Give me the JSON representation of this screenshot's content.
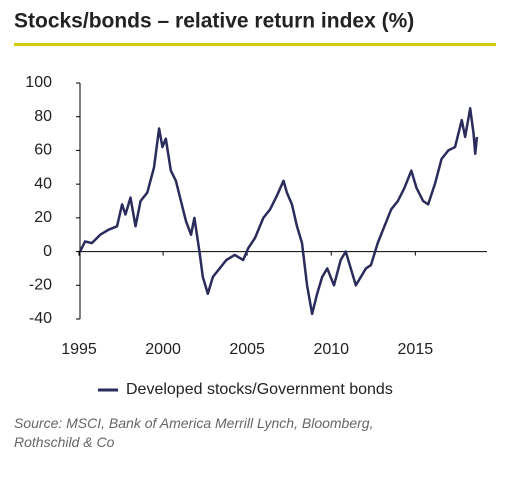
{
  "chart_data": {
    "type": "line",
    "title": "Stocks/bonds – relative return index (%)",
    "x": [
      1995.3,
      1995.6,
      1996,
      1996.5,
      1997,
      1997.5,
      1997.8,
      1998,
      1998.3,
      1998.6,
      1998.9,
      1999.3,
      1999.7,
      2000,
      2000.2,
      2000.4,
      2000.7,
      2001,
      2001.3,
      2001.6,
      2001.9,
      2002.1,
      2002.4,
      2002.6,
      2002.9,
      2003.2,
      2003.6,
      2004,
      2004.5,
      2005,
      2005.3,
      2005.7,
      2006.2,
      2006.6,
      2007,
      2007.4,
      2007.6,
      2007.9,
      2008.2,
      2008.5,
      2008.8,
      2009.1,
      2009.4,
      2009.7,
      2010,
      2010.4,
      2010.8,
      2011.1,
      2011.4,
      2011.7,
      2012,
      2012.3,
      2012.6,
      2013,
      2013.4,
      2013.8,
      2014.2,
      2014.6,
      2015,
      2015.3,
      2015.7,
      2016,
      2016.4,
      2016.8,
      2017.2,
      2017.6,
      2018,
      2018.2,
      2018.5,
      2018.7,
      2018.8,
      2018.9
    ],
    "series": [
      {
        "name": "Developed stocks/Government bonds",
        "color": "#2b2b5c",
        "values": [
          0,
          6,
          5,
          10,
          13,
          15,
          28,
          22,
          32,
          15,
          30,
          35,
          50,
          73,
          62,
          67,
          48,
          42,
          30,
          18,
          10,
          20,
          0,
          -15,
          -25,
          -15,
          -10,
          -5,
          -2,
          -5,
          2,
          8,
          20,
          25,
          33,
          42,
          35,
          28,
          15,
          5,
          -20,
          -37,
          -25,
          -15,
          -10,
          -20,
          -5,
          0,
          -10,
          -20,
          -15,
          -10,
          -8,
          5,
          15,
          25,
          30,
          38,
          48,
          38,
          30,
          28,
          40,
          55,
          60,
          62,
          78,
          68,
          85,
          70,
          58,
          68
        ]
      }
    ],
    "xlim": [
      1995,
      2019.5
    ],
    "xticks": [
      1995,
      2000,
      2005,
      2010,
      2015
    ],
    "ylim": [
      -40,
      100
    ],
    "yticks": [
      -40,
      -20,
      0,
      20,
      40,
      60,
      80,
      100
    ],
    "source": "Source: MSCI, Bank of America Merrill Lynch, Bloomberg, Rothschild & Co"
  }
}
